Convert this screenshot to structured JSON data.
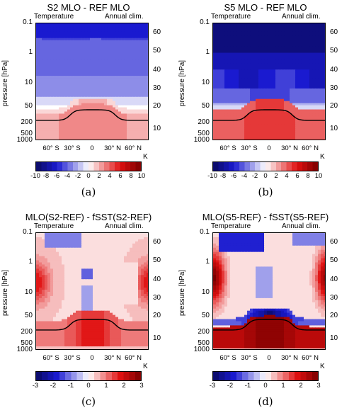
{
  "chart_data": [
    {
      "type": "heatmap",
      "title": "S2 MLO - REF MLO",
      "left_label": "Temperature",
      "right_label": "Annual clim.",
      "ylabel": "pressure [hPa]",
      "y_ticks": [
        "0.1",
        "1",
        "10",
        "50",
        "200",
        "500",
        "1000"
      ],
      "right_ticks": [
        "60",
        "50",
        "40",
        "30",
        "20",
        "10"
      ],
      "x_ticks": [
        "60° S",
        "30° S",
        "0",
        "30° N",
        "60° N"
      ],
      "colorbar_ticks": [
        "-10",
        "-8",
        "-6",
        "-4",
        "-2",
        "0",
        "2",
        "4",
        "6",
        "8",
        "10"
      ],
      "colorbar_unit": "K",
      "vmin": -10,
      "vmax": 10,
      "pattern": "a",
      "caption": "(a)"
    },
    {
      "type": "heatmap",
      "title": "S5 MLO - REF MLO",
      "left_label": "Temperature",
      "right_label": "Annual clim.",
      "ylabel": "pressure [hPa]",
      "y_ticks": [
        "0.1",
        "1",
        "10",
        "50",
        "200",
        "500",
        "1000"
      ],
      "right_ticks": [
        "60",
        "50",
        "40",
        "30",
        "20",
        "10"
      ],
      "x_ticks": [
        "60° S",
        "30° S",
        "0",
        "30° N",
        "60° N"
      ],
      "colorbar_ticks": [
        "-10",
        "-8",
        "-6",
        "-4",
        "-2",
        "0",
        "2",
        "4",
        "6",
        "8",
        "10"
      ],
      "colorbar_unit": "K",
      "vmin": -10,
      "vmax": 10,
      "pattern": "b",
      "caption": "(b)"
    },
    {
      "type": "heatmap",
      "title": "MLO(S2-REF) - fSST(S2-REF)",
      "left_label": "Temperature",
      "right_label": "Annual clim.",
      "ylabel": "pressure [hPa]",
      "y_ticks": [
        "0.1",
        "1",
        "10",
        "50",
        "200",
        "500",
        "1000"
      ],
      "right_ticks": [
        "60",
        "50",
        "40",
        "30",
        "20",
        "10"
      ],
      "x_ticks": [
        "60° S",
        "30° S",
        "0",
        "30° N",
        "60° N"
      ],
      "colorbar_ticks": [
        "-3",
        "-2",
        "-1",
        "0",
        "1",
        "2",
        "3"
      ],
      "colorbar_unit": "K",
      "vmin": -3,
      "vmax": 3,
      "pattern": "c",
      "caption": "(c)"
    },
    {
      "type": "heatmap",
      "title": "MLO(S5-REF) - fSST(S5-REF)",
      "left_label": "Temperature",
      "right_label": "Annual clim.",
      "ylabel": "pressure [hPa]",
      "y_ticks": [
        "0.1",
        "1",
        "10",
        "50",
        "200",
        "500",
        "1000"
      ],
      "right_ticks": [
        "60",
        "50",
        "40",
        "30",
        "20",
        "10"
      ],
      "x_ticks": [
        "60° S",
        "30° S",
        "0",
        "30° N",
        "60° N"
      ],
      "colorbar_ticks": [
        "-3",
        "-2",
        "-1",
        "0",
        "1",
        "2",
        "3"
      ],
      "colorbar_unit": "K",
      "vmin": -3,
      "vmax": 3,
      "pattern": "d",
      "caption": "(d)"
    }
  ],
  "colors": {
    "cold": "#1a1ad0",
    "neutral": "#ffffff",
    "warm": "#e01010",
    "deep_warm": "#7a0000",
    "deep_cold": "#0a0a60",
    "tropopause": "#000000"
  }
}
